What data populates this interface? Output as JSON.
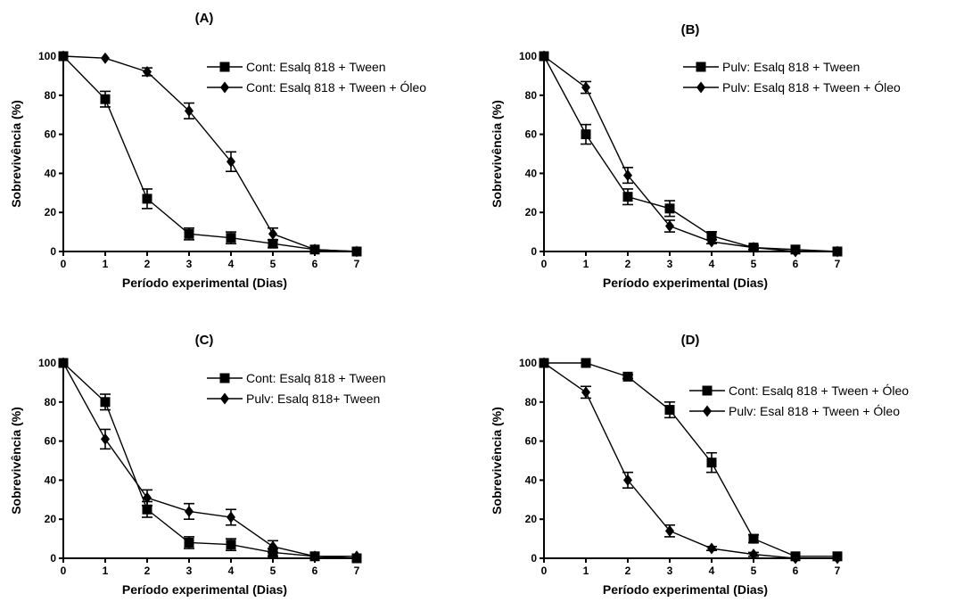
{
  "chart_data": [
    {
      "type": "line",
      "title": "(A)",
      "xlabel": "Período experimental (Dias)",
      "ylabel": "Sobrevivência (%)",
      "xlim": [
        0,
        7
      ],
      "ylim": [
        0,
        100
      ],
      "xticks": [
        0,
        1,
        2,
        3,
        4,
        5,
        6,
        7
      ],
      "yticks": [
        0,
        20,
        40,
        60,
        80,
        100
      ],
      "legend_position": "top-right",
      "series": [
        {
          "name": "Cont: Esalq 818 + Tween",
          "marker": "square",
          "x": [
            0,
            1,
            2,
            3,
            4,
            5,
            6,
            7
          ],
          "y": [
            100,
            78,
            27,
            9,
            7,
            4,
            1,
            0
          ],
          "error": [
            0,
            4,
            5,
            3,
            3,
            2,
            0,
            0
          ]
        },
        {
          "name": "Cont: Esalq 818 + Tween + Óleo",
          "marker": "diamond",
          "x": [
            0,
            1,
            2,
            3,
            4,
            5,
            6,
            7
          ],
          "y": [
            100,
            99,
            92,
            72,
            46,
            9,
            1,
            0
          ],
          "error": [
            0,
            0,
            2,
            4,
            5,
            3,
            0,
            0
          ]
        }
      ]
    },
    {
      "type": "line",
      "title": "(B)",
      "xlabel": "Período experimental (Dias)",
      "ylabel": "Sobrevivência (%)",
      "xlim": [
        0,
        7
      ],
      "ylim": [
        0,
        100
      ],
      "xticks": [
        0,
        1,
        2,
        3,
        4,
        5,
        6,
        7
      ],
      "yticks": [
        0,
        20,
        40,
        60,
        80,
        100
      ],
      "legend_position": "top-right",
      "series": [
        {
          "name": "Pulv: Esalq 818 + Tween",
          "marker": "square",
          "x": [
            0,
            1,
            2,
            3,
            4,
            5,
            6,
            7
          ],
          "y": [
            100,
            60,
            28,
            22,
            8,
            2,
            1,
            0
          ],
          "error": [
            0,
            5,
            4,
            4,
            2,
            1,
            0,
            0
          ]
        },
        {
          "name": "Pulv: Esalq 818 + Tween + Óleo",
          "marker": "diamond",
          "x": [
            0,
            1,
            2,
            3,
            4,
            5,
            6,
            7
          ],
          "y": [
            100,
            84,
            39,
            13,
            5,
            2,
            0,
            0
          ],
          "error": [
            0,
            3,
            4,
            3,
            1,
            1,
            0,
            0
          ]
        }
      ]
    },
    {
      "type": "line",
      "title": "(C)",
      "xlabel": "Período experimental (Dias)",
      "ylabel": "Sobrevivência (%)",
      "xlim": [
        0,
        7
      ],
      "ylim": [
        0,
        100
      ],
      "xticks": [
        0,
        1,
        2,
        3,
        4,
        5,
        6,
        7
      ],
      "yticks": [
        0,
        20,
        40,
        60,
        80,
        100
      ],
      "legend_position": "top-right",
      "series": [
        {
          "name": "Cont: Esalq 818 + Tween",
          "marker": "square",
          "x": [
            0,
            1,
            2,
            3,
            4,
            5,
            6,
            7
          ],
          "y": [
            100,
            80,
            25,
            8,
            7,
            3,
            1,
            0
          ],
          "error": [
            0,
            4,
            4,
            3,
            3,
            2,
            0,
            0
          ]
        },
        {
          "name": "Pulv: Esalq 818+ Tween",
          "marker": "diamond",
          "x": [
            0,
            1,
            2,
            3,
            4,
            5,
            6,
            7
          ],
          "y": [
            100,
            61,
            31,
            24,
            21,
            6,
            1,
            1
          ],
          "error": [
            0,
            5,
            4,
            4,
            4,
            3,
            0,
            0
          ]
        }
      ]
    },
    {
      "type": "line",
      "title": "(D)",
      "xlabel": "Período experimental (Dias)",
      "ylabel": "Sobrevivência (%)",
      "xlim": [
        0,
        7
      ],
      "ylim": [
        0,
        100
      ],
      "xticks": [
        0,
        1,
        2,
        3,
        4,
        5,
        6,
        7
      ],
      "yticks": [
        0,
        20,
        40,
        60,
        80,
        100
      ],
      "legend_position": "top-right",
      "series": [
        {
          "name": "Cont: Esalq 818 + Tween + Óleo",
          "marker": "square",
          "x": [
            0,
            1,
            2,
            3,
            4,
            5,
            6,
            7
          ],
          "y": [
            100,
            100,
            93,
            76,
            49,
            10,
            1,
            1
          ],
          "error": [
            0,
            0,
            1,
            4,
            5,
            2,
            0,
            0
          ]
        },
        {
          "name": "Pulv: Esal 818 + Tween + Óleo",
          "marker": "diamond",
          "x": [
            0,
            1,
            2,
            3,
            4,
            5,
            6,
            7
          ],
          "y": [
            100,
            85,
            40,
            14,
            5,
            2,
            0,
            0
          ],
          "error": [
            0,
            3,
            4,
            3,
            1,
            1,
            0,
            0
          ]
        }
      ]
    }
  ]
}
